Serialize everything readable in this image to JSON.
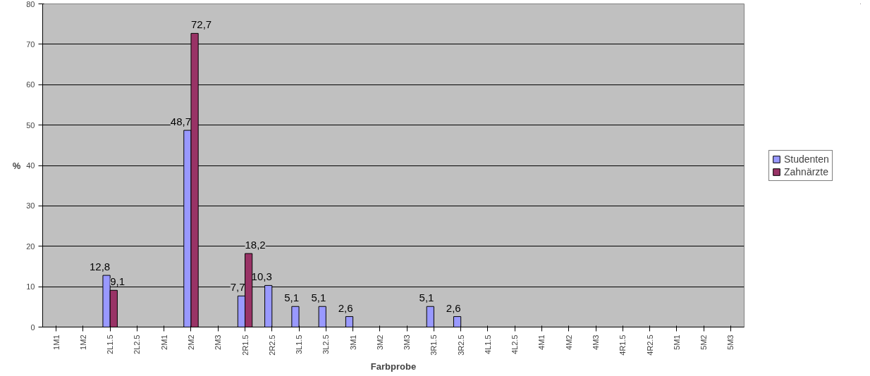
{
  "chart_data": {
    "type": "bar",
    "xlabel": "Farbprobe",
    "ylabel": "%",
    "categories": [
      "1M1",
      "1M2",
      "2L1.5",
      "2L2.5",
      "2M1",
      "2M2",
      "2M3",
      "2R1.5",
      "2R2.5",
      "3L1.5",
      "3L2.5",
      "3M1",
      "3M2",
      "3M3",
      "3R1.5",
      "3R2.5",
      "4L1.5",
      "4L2.5",
      "4M1",
      "4M2",
      "4M3",
      "4R1.5",
      "4R2.5",
      "5M1",
      "5M2",
      "5M3"
    ],
    "series": [
      {
        "name": "Studenten",
        "color": "#9999ff",
        "values": [
          null,
          null,
          12.8,
          null,
          null,
          48.7,
          null,
          7.7,
          10.3,
          5.1,
          5.1,
          2.6,
          null,
          null,
          5.1,
          2.6,
          null,
          null,
          null,
          null,
          null,
          null,
          null,
          null,
          null,
          null
        ],
        "value_labels": [
          null,
          null,
          "12,8",
          null,
          null,
          "48,7",
          null,
          "7,7",
          "10,3",
          "5,1",
          "5,1",
          "2,6",
          null,
          null,
          "5,1",
          "2,6",
          null,
          null,
          null,
          null,
          null,
          null,
          null,
          null,
          null,
          null
        ]
      },
      {
        "name": "Zahnärzte",
        "color": "#993366",
        "values": [
          null,
          null,
          9.1,
          null,
          null,
          72.7,
          null,
          18.2,
          null,
          null,
          null,
          null,
          null,
          null,
          null,
          null,
          null,
          null,
          null,
          null,
          null,
          null,
          null,
          null,
          null,
          null
        ],
        "value_labels": [
          null,
          null,
          "9,1",
          null,
          null,
          "72,7",
          null,
          "18,2",
          null,
          null,
          null,
          null,
          null,
          null,
          null,
          null,
          null,
          null,
          null,
          null,
          null,
          null,
          null,
          null,
          null,
          null
        ]
      }
    ],
    "ylim": [
      0,
      80
    ],
    "yticks": [
      0,
      10,
      20,
      30,
      40,
      50,
      60,
      70,
      80
    ],
    "grid": "y",
    "legend": "right"
  }
}
